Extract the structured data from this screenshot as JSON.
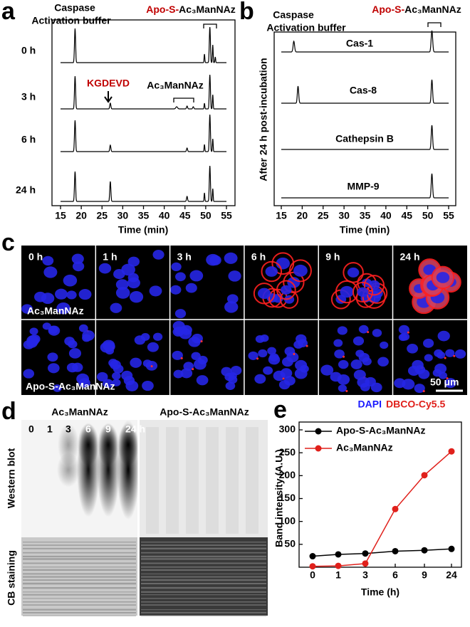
{
  "panel_labels": [
    "a",
    "b",
    "c",
    "d",
    "e"
  ],
  "panel_a": {
    "buffer_label_1": "Caspase",
    "buffer_label_2": "Activation buffer",
    "product_prefix": "Apo-S-",
    "product_suffix": "Ac₃ManNAz",
    "times": [
      "0 h",
      "3 h",
      "6 h",
      "24 h"
    ],
    "peptide_label": "KGDEVD",
    "sugar_label": "Ac₃ManNAz",
    "xticks": [
      15,
      20,
      25,
      30,
      35,
      40,
      45,
      50,
      55
    ],
    "xlabel": "Time (min)"
  },
  "panel_b": {
    "buffer_label_1": "Caspase",
    "buffer_label_2": "Activation buffer",
    "product_prefix": "Apo-S-",
    "product_suffix": "Ac₃ManNAz",
    "enzymes": [
      "Cas-1",
      "Cas-8",
      "Cathepsin B",
      "MMP-9"
    ],
    "ylabel": "After 24 h post-incubation",
    "xticks": [
      15,
      20,
      25,
      30,
      35,
      40,
      45,
      50,
      55
    ],
    "xlabel": "Time (min)"
  },
  "panel_c": {
    "times": [
      "0 h",
      "1 h",
      "3 h",
      "6 h",
      "9 h",
      "24 h"
    ],
    "row_labels": [
      "Ac₃ManNAz",
      "Apo-S-Ac₃ManNAz"
    ],
    "scale_bar": "50 μm",
    "stain_1": "DAPI",
    "stain_2": "DBCO-Cy5.5"
  },
  "panel_d": {
    "group_labels": [
      "Ac₃ManNAz",
      "Apo-S-Ac₃ManNAz"
    ],
    "lanes": [
      "0",
      "1",
      "3",
      "6",
      "9",
      "24 h"
    ],
    "row_labels": [
      "Western blot",
      "CB staining"
    ]
  },
  "chart_data": {
    "type": "line",
    "categories": [
      "0",
      "1",
      "3",
      "6",
      "9",
      "24"
    ],
    "xlabel": "Time (h)",
    "ylabel": "Band intensity (A.U.)",
    "ylim": [
      0,
      300
    ],
    "yticks": [
      50,
      100,
      150,
      200,
      250,
      300
    ],
    "series": [
      {
        "name": "Apo-S-Ac₃ManNAz",
        "color": "#000000",
        "values": [
          24,
          28,
          30,
          35,
          37,
          40
        ]
      },
      {
        "name": "Ac₃ManNAz",
        "color": "#e0201b",
        "values": [
          2,
          3,
          8,
          127,
          201,
          253
        ]
      }
    ]
  }
}
